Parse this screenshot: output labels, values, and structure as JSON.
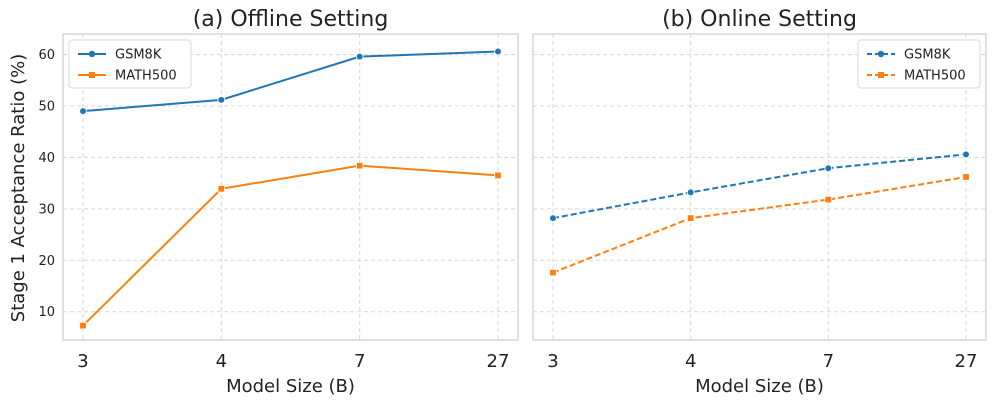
{
  "ylabel": "Stage 1 Acceptance Ratio (%)",
  "chart_data": [
    {
      "type": "line",
      "title": "(a) Offline Setting",
      "xlabel": "Model Size (B)",
      "categories": [
        "3",
        "4",
        "7",
        "27"
      ],
      "ylim": [
        4.5,
        64
      ],
      "yticks": [
        10,
        20,
        30,
        40,
        50,
        60
      ],
      "grid": true,
      "legend_position": "top-left",
      "series": [
        {
          "name": "GSM8K",
          "values": [
            49.0,
            51.2,
            59.6,
            60.6
          ],
          "color": "#1f77b4",
          "marker": "circle",
          "dashed": false
        },
        {
          "name": "MATH500",
          "values": [
            7.3,
            33.9,
            38.4,
            36.5
          ],
          "color": "#ff7f0e",
          "marker": "square",
          "dashed": false
        }
      ]
    },
    {
      "type": "line",
      "title": "(b) Online Setting",
      "xlabel": "Model Size (B)",
      "categories": [
        "3",
        "4",
        "7",
        "27"
      ],
      "ylim": [
        4.5,
        64
      ],
      "yticks": [
        10,
        20,
        30,
        40,
        50,
        60
      ],
      "grid": true,
      "legend_position": "top-right",
      "series": [
        {
          "name": "GSM8K",
          "values": [
            28.2,
            33.2,
            37.9,
            40.6
          ],
          "color": "#1f77b4",
          "marker": "circle",
          "dashed": true
        },
        {
          "name": "MATH500",
          "values": [
            17.6,
            28.2,
            31.8,
            36.2
          ],
          "color": "#ff7f0e",
          "marker": "square",
          "dashed": true
        }
      ]
    }
  ]
}
